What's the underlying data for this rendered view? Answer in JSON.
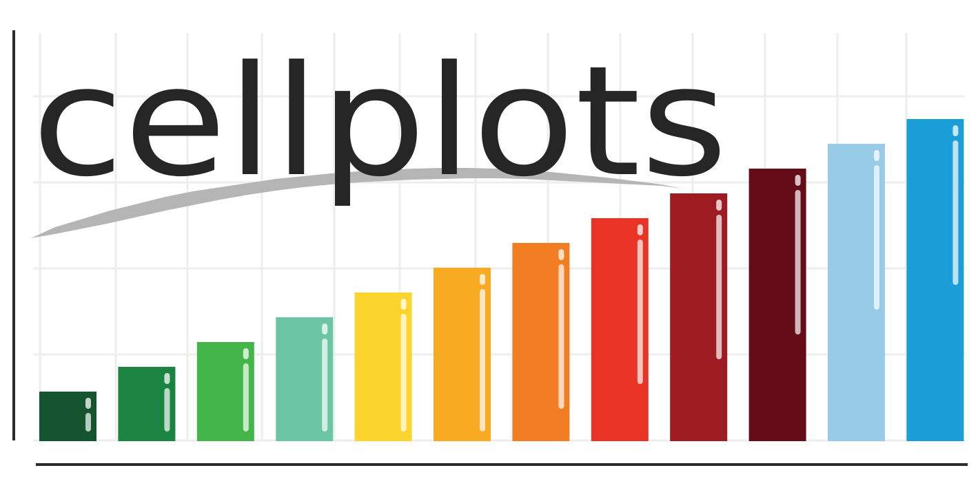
{
  "logo": {
    "wordmark": "cellplots",
    "wordmark_color": "#262626",
    "axis_color": "#2b2b2b",
    "grid_color": "#eeeeee",
    "swoosh_color": "#b5b5b5",
    "highlight_color": "#ffffff"
  },
  "bars": [
    {
      "color": "#145530",
      "level": 1
    },
    {
      "color": "#1c8442",
      "level": 2
    },
    {
      "color": "#43b549",
      "level": 3
    },
    {
      "color": "#6cc5a3",
      "level": 4
    },
    {
      "color": "#fbd52e",
      "level": 5
    },
    {
      "color": "#f8ab22",
      "level": 6
    },
    {
      "color": "#f27d22",
      "level": 7
    },
    {
      "color": "#e93425",
      "level": 8
    },
    {
      "color": "#9d1c22",
      "level": 9
    },
    {
      "color": "#660c18",
      "level": 10
    },
    {
      "color": "#98cbe8",
      "level": 11
    },
    {
      "color": "#1b9dd8",
      "level": 12
    }
  ]
}
